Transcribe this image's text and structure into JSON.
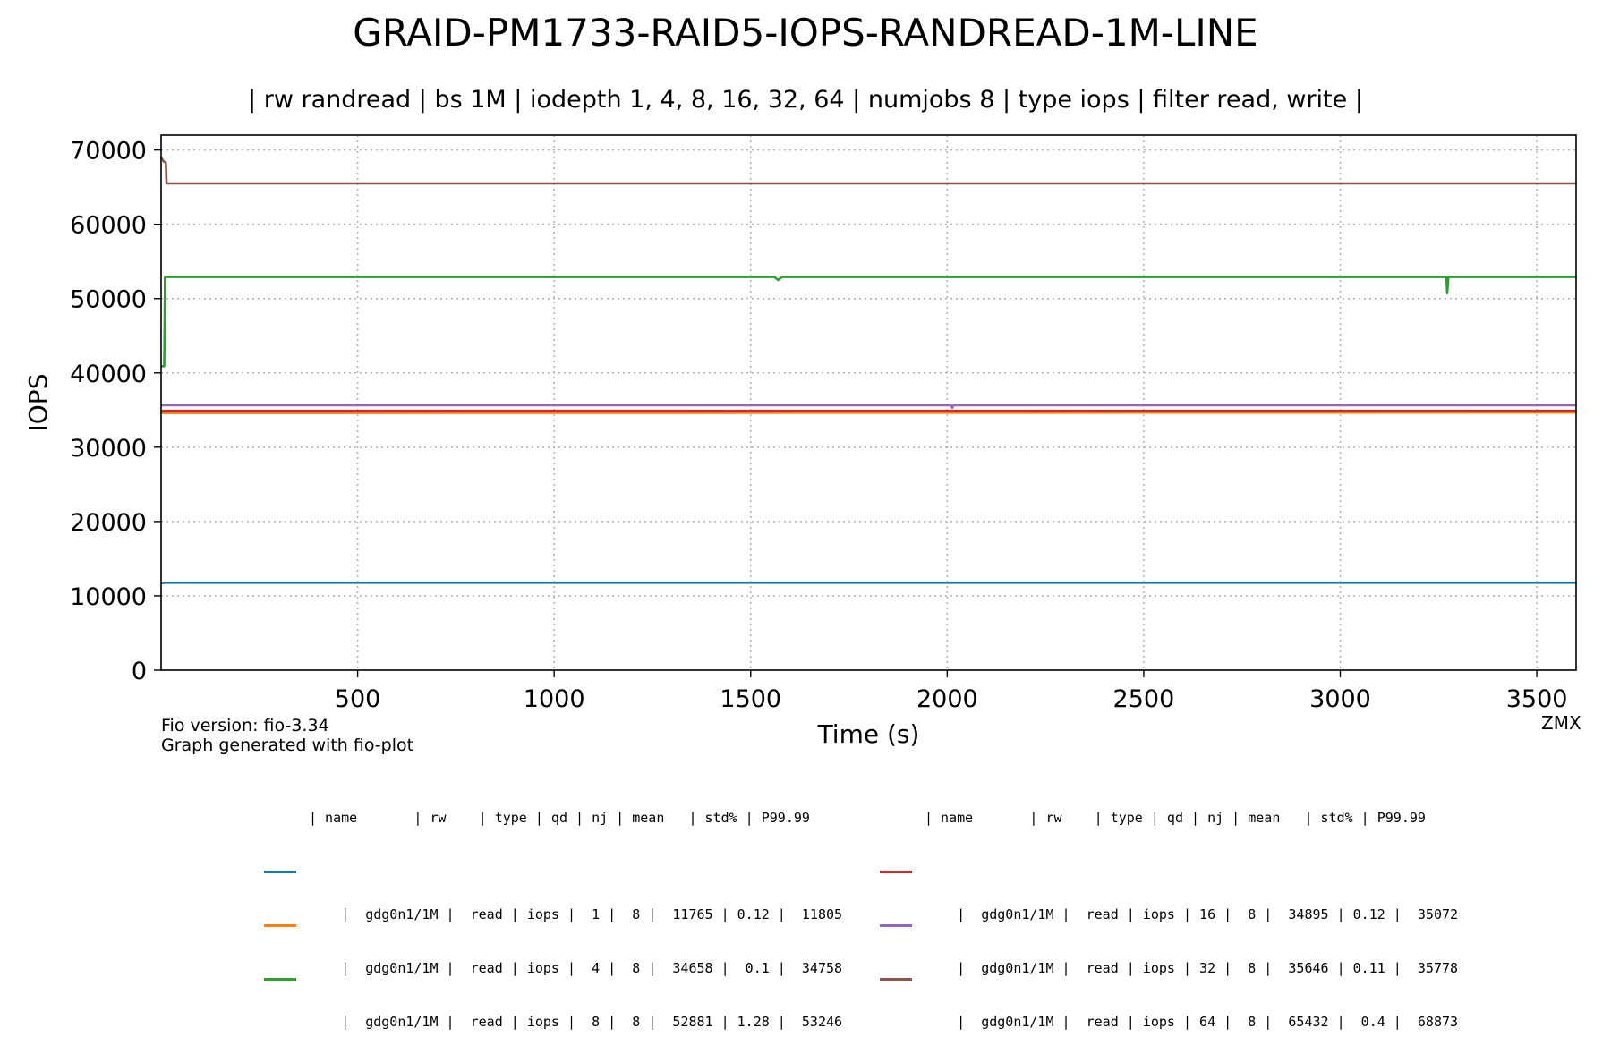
{
  "chart_data": {
    "type": "line",
    "title": "GRAID-PM1733-RAID5-IOPS-RANDREAD-1M-LINE",
    "subtitle": "| rw randread | bs 1M | iodepth 1, 4, 8, 16, 32, 64 | numjobs 8 | type iops | filter read, write |",
    "xlabel": "Time (s)",
    "ylabel": "IOPS",
    "xlim": [
      0,
      3600
    ],
    "ylim": [
      0,
      72000
    ],
    "x_ticks": [
      500,
      1000,
      1500,
      2000,
      2500,
      3000,
      3500
    ],
    "y_ticks": [
      0,
      10000,
      20000,
      30000,
      40000,
      50000,
      60000,
      70000
    ],
    "grid": true,
    "series": [
      {
        "name": "gdg0n1/1M qd 1",
        "color": "#1f77b4",
        "points": [
          [
            0,
            11700
          ],
          [
            8,
            11760
          ],
          [
            3600,
            11765
          ]
        ]
      },
      {
        "name": "gdg0n1/1M qd 4",
        "color": "#ff7f0e",
        "points": [
          [
            0,
            34600
          ],
          [
            3600,
            34658
          ]
        ]
      },
      {
        "name": "gdg0n1/1M qd 8",
        "color": "#2ca02c",
        "points": [
          [
            0,
            40900
          ],
          [
            8,
            40900
          ],
          [
            10,
            52900
          ],
          [
            1560,
            52900
          ],
          [
            1570,
            52500
          ],
          [
            1580,
            52900
          ],
          [
            3270,
            52900
          ],
          [
            3272,
            50700
          ],
          [
            3275,
            52900
          ],
          [
            3600,
            52900
          ]
        ]
      },
      {
        "name": "gdg0n1/1M qd 16",
        "color": "#d62728",
        "points": [
          [
            0,
            34895
          ],
          [
            3600,
            34895
          ]
        ]
      },
      {
        "name": "gdg0n1/1M qd 32",
        "color": "#9467bd",
        "points": [
          [
            0,
            35646
          ],
          [
            2010,
            35646
          ],
          [
            2013,
            35300
          ],
          [
            2016,
            35646
          ],
          [
            3600,
            35646
          ]
        ]
      },
      {
        "name": "gdg0n1/1M qd 64",
        "color": "#8c564b",
        "points": [
          [
            0,
            69000
          ],
          [
            6,
            68500
          ],
          [
            12,
            68300
          ],
          [
            14,
            65500
          ],
          [
            3600,
            65500
          ]
        ]
      }
    ]
  },
  "footer": {
    "fio_version": "Fio version: fio-3.34",
    "generated": "Graph generated with fio-plot",
    "corner": "ZMX"
  },
  "legend_tables": [
    {
      "header": "| name       | rw    | type | qd | nj | mean   | std% | P99.99",
      "rows": [
        {
          "color": "#1f77b4",
          "text": "|  gdg0n1/1M |  read | iops |  1 |  8 |  11765 | 0.12 |  11805"
        },
        {
          "color": "#ff7f0e",
          "text": "|  gdg0n1/1M |  read | iops |  4 |  8 |  34658 |  0.1 |  34758"
        },
        {
          "color": "#2ca02c",
          "text": "|  gdg0n1/1M |  read | iops |  8 |  8 |  52881 | 1.28 |  53246"
        }
      ]
    },
    {
      "header": "| name       | rw    | type | qd | nj | mean   | std% | P99.99",
      "rows": [
        {
          "color": "#d62728",
          "text": "|  gdg0n1/1M |  read | iops | 16 |  8 |  34895 | 0.12 |  35072"
        },
        {
          "color": "#9467bd",
          "text": "|  gdg0n1/1M |  read | iops | 32 |  8 |  35646 | 0.11 |  35778"
        },
        {
          "color": "#8c564b",
          "text": "|  gdg0n1/1M |  read | iops | 64 |  8 |  65432 |  0.4 |  68873"
        }
      ]
    }
  ]
}
